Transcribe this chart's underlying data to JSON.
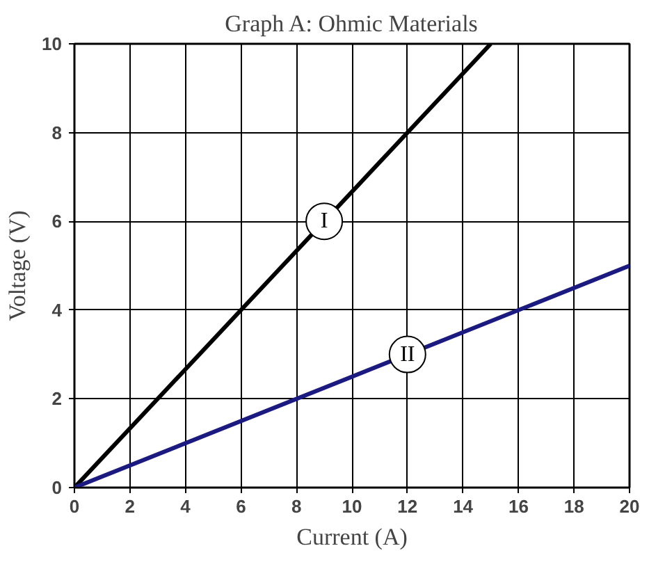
{
  "chart_data": {
    "type": "line",
    "title": "Graph A: Ohmic Materials",
    "xlabel": "Current (A)",
    "ylabel": "Voltage (V)",
    "xlim": [
      0,
      20
    ],
    "ylim": [
      0,
      10
    ],
    "xticks": [
      0,
      2,
      4,
      6,
      8,
      10,
      12,
      14,
      16,
      18,
      20
    ],
    "yticks": [
      0,
      2,
      4,
      6,
      8,
      10
    ],
    "grid": true,
    "marker": "none",
    "line_style": "solid",
    "series": [
      {
        "name": "I",
        "color": "#000000",
        "x": [
          0,
          15
        ],
        "values": [
          0,
          10
        ]
      },
      {
        "name": "II",
        "color": "#1a1a80",
        "x": [
          0,
          20
        ],
        "values": [
          0,
          5
        ]
      }
    ]
  }
}
